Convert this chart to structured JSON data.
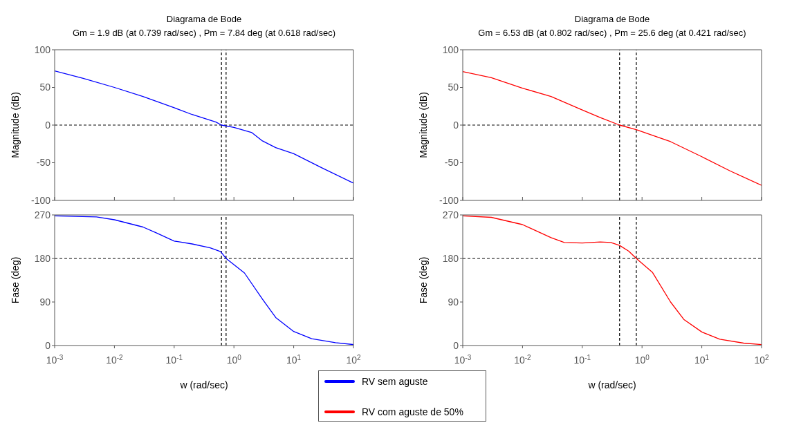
{
  "chart_data": [
    {
      "type": "line",
      "title": "Diagrama de Bode",
      "subtitle": "Gm = 1.9 dB (at 0.739 rad/sec) ,  Pm = 7.84 deg (at 0.618 rad/sec)",
      "ylabel": "Magnitude (dB)",
      "log": "x",
      "xlim": [
        0.001,
        100
      ],
      "xticks": [
        0.001,
        0.01,
        0.1,
        1,
        10,
        100
      ],
      "ylim": [
        -100,
        100
      ],
      "yticks": [
        -100,
        -50,
        0,
        50,
        100
      ],
      "tick_labels": "y",
      "series": [
        {
          "color": "#0000ff",
          "x": [
            0.001,
            0.003,
            0.01,
            0.03,
            0.1,
            0.2,
            0.5,
            0.618,
            1,
            2,
            3,
            5,
            10,
            30,
            100
          ],
          "values": [
            72,
            62,
            50,
            38,
            23,
            14,
            4,
            0,
            -3,
            -10,
            -21,
            -30,
            -38,
            -57,
            -77
          ]
        }
      ],
      "ref_lines": [
        {
          "axis": "y",
          "value": 0,
          "color": "#000000",
          "line_style": "dashed"
        },
        {
          "axis": "x",
          "value": 0.618,
          "color": "#000000",
          "line_style": "dashed"
        },
        {
          "axis": "x",
          "value": 0.739,
          "color": "#000000",
          "line_style": "dashed"
        }
      ]
    },
    {
      "type": "line",
      "title": "Diagrama de Bode",
      "subtitle": "Gm = 6.53 dB (at 0.802 rad/sec) ,  Pm = 25.6 deg (at 0.421 rad/sec)",
      "ylabel": "Magnitude (dB)",
      "log": "x",
      "xlim": [
        0.001,
        100
      ],
      "xticks": [
        0.001,
        0.01,
        0.1,
        1,
        10,
        100
      ],
      "ylim": [
        -100,
        100
      ],
      "yticks": [
        -100,
        -50,
        0,
        50,
        100
      ],
      "tick_labels": "y",
      "series": [
        {
          "color": "#ff0000",
          "x": [
            0.001,
            0.003,
            0.01,
            0.03,
            0.1,
            0.2,
            0.421,
            0.802,
            2,
            3,
            10,
            30,
            100
          ],
          "values": [
            71,
            63,
            49,
            38,
            20,
            10,
            0,
            -6,
            -17,
            -22,
            -42,
            -61,
            -80
          ]
        }
      ],
      "ref_lines": [
        {
          "axis": "y",
          "value": 0,
          "color": "#000000",
          "line_style": "dashed"
        },
        {
          "axis": "x",
          "value": 0.421,
          "color": "#000000",
          "line_style": "dashed"
        },
        {
          "axis": "x",
          "value": 0.802,
          "color": "#000000",
          "line_style": "dashed"
        }
      ]
    },
    {
      "type": "line",
      "xlabel": "w  (rad/sec)",
      "ylabel": "Fase (deg)",
      "log": "x",
      "xlim": [
        0.001,
        100
      ],
      "xticks": [
        {
          "value": 0.001,
          "label": "10$^{-3}$"
        },
        {
          "value": 0.01,
          "label": "10$^{-2}$"
        },
        {
          "value": 0.1,
          "label": "10$^{-1}$"
        },
        {
          "value": 1,
          "label": "10$^{0}$"
        },
        {
          "value": 10,
          "label": "10$^{1}$"
        },
        {
          "value": 100,
          "label": "10$^{2}$"
        }
      ],
      "ylim": [
        0,
        270
      ],
      "yticks": [
        0,
        90,
        180,
        270
      ],
      "legend": "bottom",
      "series": [
        {
          "name": "RV sem aguste",
          "color": "#0000ff",
          "x": [
            0.001,
            0.005,
            0.01,
            0.03,
            0.05,
            0.1,
            0.2,
            0.4,
            0.6,
            0.739,
            1.5,
            3,
            5,
            10,
            20,
            50,
            100
          ],
          "values": [
            268,
            266,
            260,
            245,
            233,
            216,
            210,
            202,
            194,
            180,
            150,
            96,
            58,
            29,
            14,
            6,
            2
          ]
        }
      ],
      "ref_lines": [
        {
          "axis": "y",
          "value": 180,
          "color": "#000000",
          "line_style": "dashed"
        },
        {
          "axis": "x",
          "value": 0.618,
          "color": "#000000",
          "line_style": "dashed"
        },
        {
          "axis": "x",
          "value": 0.739,
          "color": "#000000",
          "line_style": "dashed"
        }
      ]
    },
    {
      "type": "line",
      "xlabel": "w  (rad/sec)",
      "ylabel": "Fase (deg)",
      "log": "x",
      "xlim": [
        0.001,
        100
      ],
      "xticks": [
        {
          "value": 0.001,
          "label": "10$^{-3}$"
        },
        {
          "value": 0.01,
          "label": "10$^{-2}$"
        },
        {
          "value": 0.1,
          "label": "10$^{-1}$"
        },
        {
          "value": 1,
          "label": "10$^{0}$"
        },
        {
          "value": 10,
          "label": "10$^{1}$"
        },
        {
          "value": 100,
          "label": "10$^{2}$"
        }
      ],
      "ylim": [
        0,
        270
      ],
      "yticks": [
        0,
        90,
        180,
        270
      ],
      "legend": "bottom",
      "series": [
        {
          "name": "RV com aguste de 50%",
          "color": "#ff0000",
          "x": [
            0.001,
            0.003,
            0.01,
            0.03,
            0.05,
            0.1,
            0.2,
            0.3,
            0.421,
            0.6,
            0.802,
            1.5,
            3,
            5,
            10,
            20,
            50,
            100
          ],
          "values": [
            268,
            265,
            250,
            223,
            213,
            212,
            214,
            213,
            207,
            195,
            180,
            151,
            90,
            54,
            28,
            13,
            5,
            2
          ]
        }
      ],
      "ref_lines": [
        {
          "axis": "y",
          "value": 180,
          "color": "#000000",
          "line_style": "dashed"
        },
        {
          "axis": "x",
          "value": 0.421,
          "color": "#000000",
          "line_style": "dashed"
        },
        {
          "axis": "x",
          "value": 0.802,
          "color": "#000000",
          "line_style": "dashed"
        }
      ]
    }
  ]
}
